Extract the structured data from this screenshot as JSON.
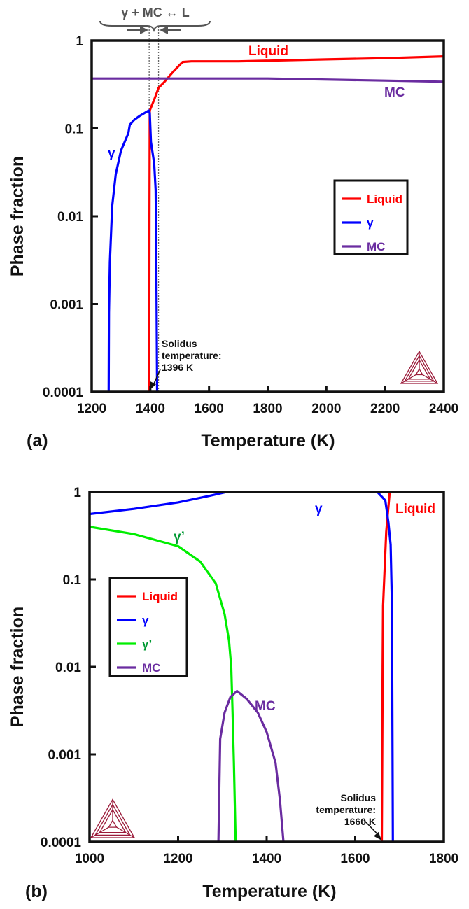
{
  "chart_data": [
    {
      "panel": "(a)",
      "type": "line",
      "xlabel": "Temperature (K)",
      "ylabel": "Phase fraction",
      "yscale": "log",
      "xlim": [
        1200,
        2400
      ],
      "ylim": [
        0.0001,
        1
      ],
      "x_ticks": [
        "1200",
        "1400",
        "1600",
        "1800",
        "2000",
        "2200",
        "2400"
      ],
      "y_ticks": [
        "1",
        "0.1",
        "0.01",
        "0.001",
        "0.0001"
      ],
      "legend": {
        "placement": "center-right",
        "entries": [
          "Liquid",
          "γ",
          "MC"
        ]
      },
      "series": [
        {
          "name": "Liquid",
          "color": "#ff0000",
          "points": [
            [
              1396,
              0.0001
            ],
            [
              1397,
              0.01
            ],
            [
              1398,
              0.16
            ],
            [
              1415,
              0.22
            ],
            [
              1428,
              0.29
            ],
            [
              1445,
              0.33
            ],
            [
              1480,
              0.45
            ],
            [
              1510,
              0.57
            ],
            [
              1540,
              0.58
            ],
            [
              1700,
              0.58
            ],
            [
              2000,
              0.61
            ],
            [
              2200,
              0.63
            ],
            [
              2400,
              0.66
            ]
          ]
        },
        {
          "name": "γ",
          "color": "#0000ff",
          "points": [
            [
              1258,
              0.0001
            ],
            [
              1259,
              0.0008
            ],
            [
              1262,
              0.003
            ],
            [
              1270,
              0.013
            ],
            [
              1282,
              0.03
            ],
            [
              1300,
              0.056
            ],
            [
              1325,
              0.088
            ],
            [
              1330,
              0.11
            ],
            [
              1345,
              0.125
            ],
            [
              1365,
              0.14
            ],
            [
              1395,
              0.16
            ],
            [
              1398,
              0.15
            ],
            [
              1402,
              0.07
            ],
            [
              1413,
              0.04
            ],
            [
              1418,
              0.02
            ],
            [
              1420,
              0.005
            ],
            [
              1423,
              0.0001
            ]
          ]
        },
        {
          "name": "MC",
          "color": "#6a2ca0",
          "points": [
            [
              1200,
              0.37
            ],
            [
              1300,
              0.37
            ],
            [
              1800,
              0.37
            ],
            [
              2200,
              0.35
            ],
            [
              2400,
              0.34
            ]
          ]
        }
      ],
      "annotations": {
        "series_labels": {
          "Liquid": "Liquid",
          "gamma": "γ",
          "MC": "MC"
        },
        "reaction": "γ + MC ↔ L",
        "reaction_range_K": [
          1396,
          1428
        ],
        "solidus_line1": "Solidus",
        "solidus_line2": "temperature:",
        "solidus_value": "1396 K",
        "solidus_temperature_K": 1396
      }
    },
    {
      "panel": "(b)",
      "type": "line",
      "xlabel": "Temperature (K)",
      "ylabel": "Phase fraction",
      "yscale": "log",
      "xlim": [
        1000,
        1800
      ],
      "ylim": [
        0.0001,
        1
      ],
      "x_ticks": [
        "1000",
        "1200",
        "1400",
        "1600",
        "1800"
      ],
      "y_ticks": [
        "1",
        "0.1",
        "0.01",
        "0.001",
        "0.0001"
      ],
      "legend": {
        "placement": "center-left",
        "entries": [
          "Liquid",
          "γ",
          "γ’",
          "MC"
        ]
      },
      "series": [
        {
          "name": "Liquid",
          "color": "#ff0000",
          "points": [
            [
              1660,
              0.0001
            ],
            [
              1662,
              0.01
            ],
            [
              1663,
              0.05
            ],
            [
              1670,
              0.35
            ],
            [
              1678,
              1.0
            ],
            [
              1800,
              1.0
            ]
          ]
        },
        {
          "name": "γ",
          "color": "#0000ff",
          "points": [
            [
              1000,
              0.56
            ],
            [
              1100,
              0.64
            ],
            [
              1200,
              0.76
            ],
            [
              1270,
              0.9
            ],
            [
              1310,
              1.0
            ],
            [
              1650,
              1.0
            ],
            [
              1668,
              0.8
            ],
            [
              1675,
              0.45
            ],
            [
              1680,
              0.25
            ],
            [
              1683,
              0.05
            ],
            [
              1685,
              0.0001
            ]
          ]
        },
        {
          "name": "γ’",
          "color": "#00ee00",
          "points": [
            [
              1000,
              0.4
            ],
            [
              1100,
              0.33
            ],
            [
              1200,
              0.24
            ],
            [
              1250,
              0.16
            ],
            [
              1285,
              0.09
            ],
            [
              1305,
              0.04
            ],
            [
              1315,
              0.02
            ],
            [
              1320,
              0.01
            ],
            [
              1323,
              0.003
            ],
            [
              1326,
              0.0008
            ],
            [
              1330,
              0.0001
            ]
          ]
        },
        {
          "name": "MC",
          "color": "#6a2ca0",
          "points": [
            [
              1291,
              0.0001
            ],
            [
              1295,
              0.0015
            ],
            [
              1305,
              0.003
            ],
            [
              1318,
              0.0045
            ],
            [
              1333,
              0.0053
            ],
            [
              1355,
              0.0043
            ],
            [
              1380,
              0.003
            ],
            [
              1400,
              0.0018
            ],
            [
              1420,
              0.0008
            ],
            [
              1430,
              0.0003
            ],
            [
              1438,
              0.0001
            ]
          ]
        }
      ],
      "annotations": {
        "series_labels": {
          "gamma": "γ",
          "gamma_prime": "γ’",
          "Liquid": "Liquid",
          "MC": "MC"
        },
        "solidus_line1": "Solidus",
        "solidus_line2": "temperature:",
        "solidus_value": "1660 K",
        "solidus_temperature_K": 1660
      }
    }
  ],
  "logo": {
    "name": "thermo-calc-logo",
    "color": "#9b1b3a"
  }
}
